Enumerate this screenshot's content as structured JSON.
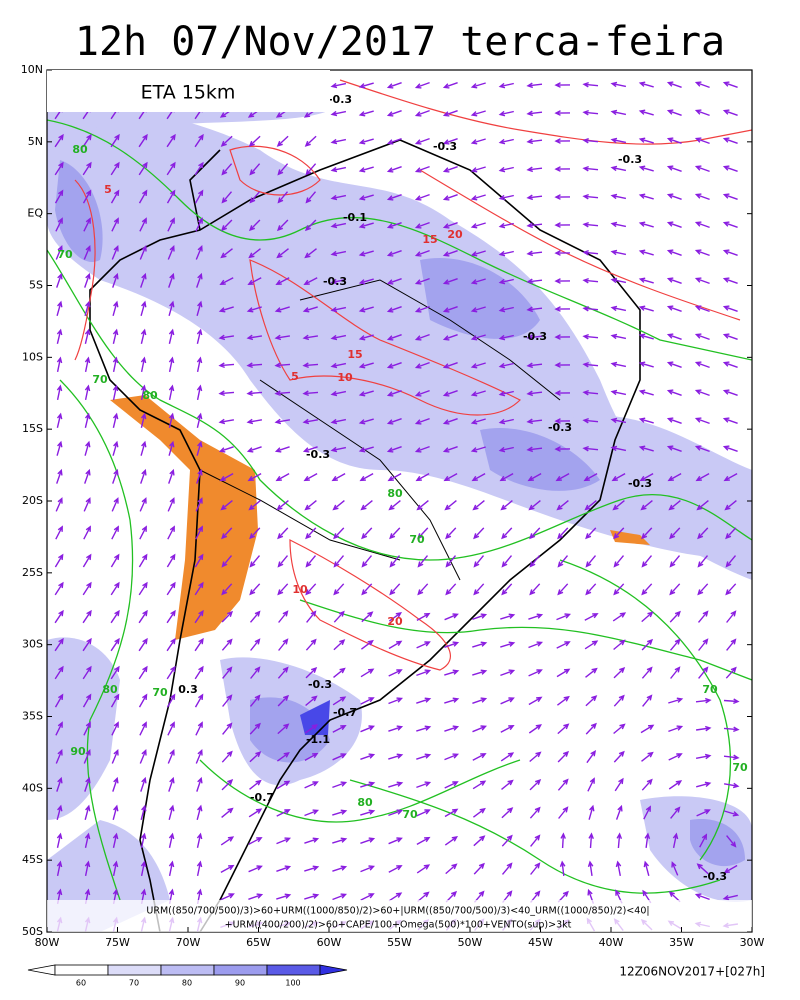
{
  "header": {
    "title": "12h 07/Nov/2017 terca-feira"
  },
  "map": {
    "model_label": "ETA 15km",
    "lat_labels": [
      "10N",
      "5N",
      "EQ",
      "5S",
      "10S",
      "15S",
      "20S",
      "25S",
      "30S",
      "35S",
      "40S",
      "45S",
      "50S"
    ],
    "lon_labels": [
      "80W",
      "75W",
      "70W",
      "65W",
      "60W",
      "55W",
      "50W",
      "45W",
      "40W",
      "35W",
      "30W"
    ],
    "contour_labels": [
      "-0.3",
      "5",
      "80",
      "70",
      "-0.3",
      "-0.3",
      "-0.1",
      "20",
      "15",
      "-0.3",
      "-0.3",
      "15",
      "10",
      "5",
      "80",
      "70",
      "-0.3",
      "-0.3",
      "80",
      "-0.3",
      "70",
      "10",
      "20",
      "-0.3",
      "-0.7",
      "-1.1",
      "0.3",
      "80",
      "70",
      "90",
      "-0.7",
      "80",
      "70",
      "-0.3",
      "70",
      "70"
    ],
    "formula": [
      "URM((850/700/500)/3)>60+URM((1000/850)/2)>60+|URM((850/700/500)/3)<40_URM((1000/850)/2)<40|",
      "+URM((400/200)/2)>60+CAPE/100+Omega(500)*100+VENTO(sup)>3kt"
    ]
  },
  "colorbar": {
    "labels": [
      "60",
      "70",
      "80",
      "90",
      "100"
    ]
  },
  "footer": {
    "run": "12Z06NOV2017+[027h]"
  }
}
